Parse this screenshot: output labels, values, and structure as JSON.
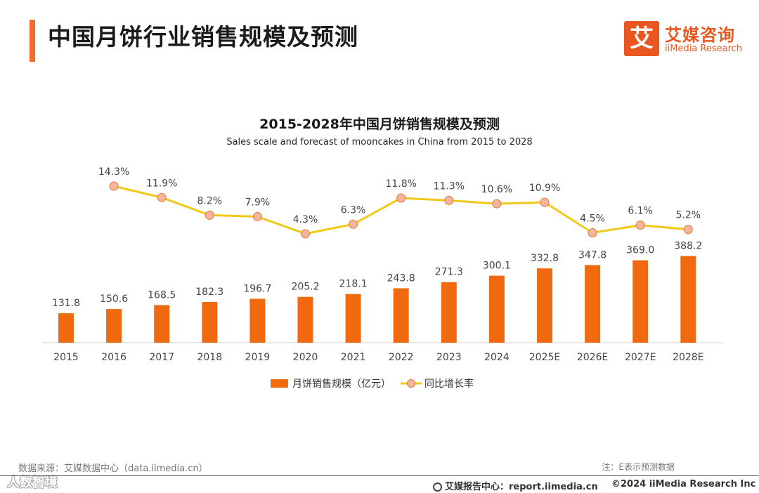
{
  "header": {
    "title": "中国月饼行业销售规模及预测",
    "logo_char": "艾",
    "logo_cn": "艾媒咨询",
    "logo_en": "iiMedia Research"
  },
  "chart_data": {
    "type": "bar+line",
    "title": "2015-2028年中国月饼销售规模及预测",
    "subtitle": "Sales scale and forecast of mooncakes in China from 2015 to 2028",
    "categories": [
      "2015",
      "2016",
      "2017",
      "2018",
      "2019",
      "2020",
      "2021",
      "2022",
      "2023",
      "2024",
      "2025E",
      "2026E",
      "2027E",
      "2028E"
    ],
    "series": [
      {
        "name": "月饼销售规模（亿元）",
        "type": "bar",
        "color": "#f26a0f",
        "values": [
          131.8,
          150.6,
          168.5,
          182.3,
          196.7,
          205.2,
          218.1,
          243.8,
          271.3,
          300.1,
          332.8,
          347.8,
          369.0,
          388.2
        ],
        "labels": [
          "131.8",
          "150.6",
          "168.5",
          "182.3",
          "196.7",
          "205.2",
          "218.1",
          "243.8",
          "271.3",
          "300.1",
          "332.8",
          "347.8",
          "369.0",
          "388.2"
        ]
      },
      {
        "name": "同比增长率",
        "type": "line",
        "color": "#f2c818",
        "marker_color": "#f5b59b",
        "values": [
          null,
          14.3,
          11.9,
          8.2,
          7.9,
          4.3,
          6.3,
          11.8,
          11.3,
          10.6,
          10.9,
          4.5,
          6.1,
          5.2
        ],
        "labels": [
          null,
          "14.3%",
          "11.9%",
          "8.2%",
          "7.9%",
          "4.3%",
          "6.3%",
          "11.8%",
          "11.3%",
          "10.6%",
          "10.9%",
          "4.5%",
          "6.1%",
          "5.2%"
        ]
      }
    ],
    "legend_position": "bottom-center",
    "grid": false
  },
  "footer": {
    "source": "数据来源：艾媒数据中心（data.iimedia.cn）",
    "note": "注：E表示预测数据",
    "report": "艾媒报告中心：report.iimedia.cn",
    "copyright": "©2024  iiMedia Research  Inc",
    "watermark": "人数智境"
  }
}
